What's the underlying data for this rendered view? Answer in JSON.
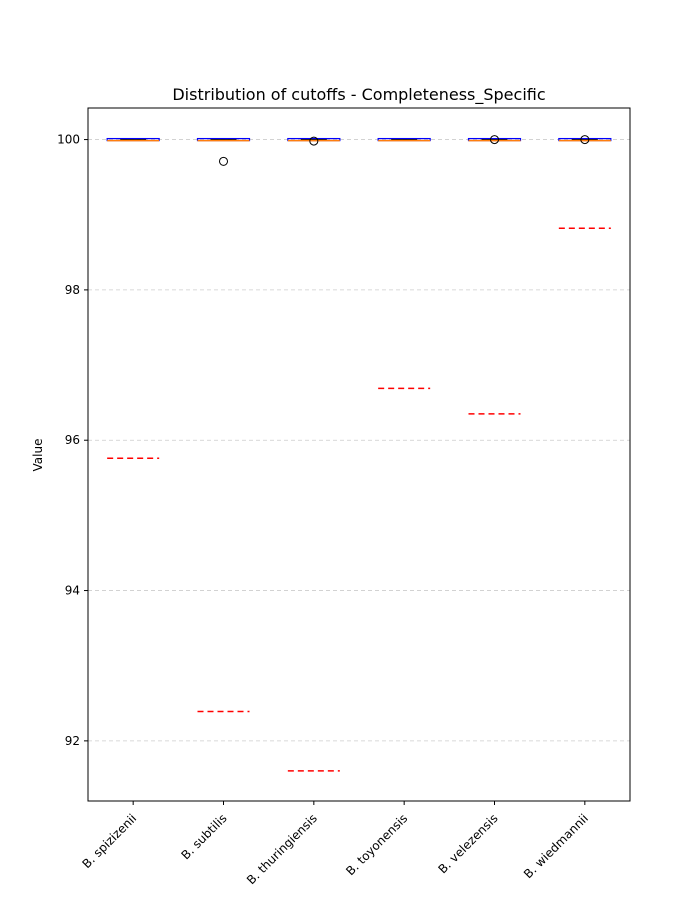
{
  "chart_data": {
    "type": "box",
    "title": "Distribution of cutoffs - Completeness_Specific",
    "xlabel": "",
    "ylabel": "Value",
    "ylim": [
      91.2,
      100.42
    ],
    "yticks": [
      92,
      94,
      96,
      98,
      100
    ],
    "grid": "y-dashed",
    "categories": [
      "B. spizizenii",
      "B. subtilis",
      "B. thuringiensis",
      "B. toyonensis",
      "B. velezensis",
      "B. wiedmannii"
    ],
    "boxes": [
      {
        "whisker_low": 100,
        "q1": 100,
        "median": 100,
        "q3": 100,
        "whisker_high": 100,
        "outliers": []
      },
      {
        "whisker_low": 100,
        "q1": 100,
        "median": 100,
        "q3": 100,
        "whisker_high": 100,
        "outliers": [
          99.71
        ]
      },
      {
        "whisker_low": 100,
        "q1": 100,
        "median": 100,
        "q3": 100,
        "whisker_high": 100,
        "outliers": [
          99.98
        ]
      },
      {
        "whisker_low": 100,
        "q1": 100,
        "median": 100,
        "q3": 100,
        "whisker_high": 100,
        "outliers": []
      },
      {
        "whisker_low": 100,
        "q1": 100,
        "median": 100,
        "q3": 100,
        "whisker_high": 100,
        "outliers": [
          100
        ]
      },
      {
        "whisker_low": 100,
        "q1": 100,
        "median": 100,
        "q3": 100,
        "whisker_high": 100,
        "outliers": [
          100
        ]
      }
    ],
    "cutoff_lines": [
      95.76,
      92.39,
      91.6,
      96.69,
      96.35,
      98.82
    ],
    "colors": {
      "box_edge": "#0000ff",
      "median": "#ff7f0e",
      "cutoff": "#ff0000",
      "grid": "#cccccc",
      "outlier": "#000000"
    }
  }
}
